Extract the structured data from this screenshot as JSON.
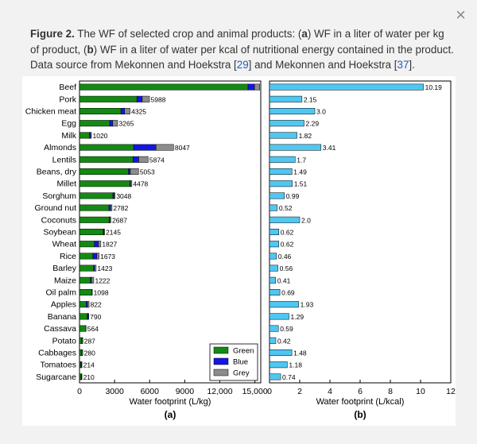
{
  "dialog": {
    "close_label": "×"
  },
  "caption": {
    "fig_label": "Figure 2.",
    "part1": " The WF of selected crop and animal products: (",
    "a_letter": "a",
    "part2": ") WF in a liter of water per kg of product, (",
    "b_letter": "b",
    "part3": ") WF in a liter of water per kcal of nutritional energy contained in the product. Data source from Mekonnen and Hoekstra [",
    "ref1": "29",
    "part4": "] and Mekonnen and Hoekstra [",
    "ref2": "37",
    "part5": "]."
  },
  "colors": {
    "green": "#138a13",
    "blue": "#1515e6",
    "grey": "#8c8c8c",
    "cyan": "#4fc7f3",
    "link": "#1f5fb8"
  },
  "chart_data": [
    {
      "type": "bar",
      "orientation": "horizontal",
      "stacked": true,
      "panel": "(a)",
      "xlabel": "Water footprint (L/kg)",
      "xlim": [
        0,
        15500
      ],
      "xticks": [
        0,
        3000,
        6000,
        9000,
        12000,
        15000
      ],
      "xtick_labels": [
        "0",
        "3000",
        "6000",
        "9000",
        "12,000",
        "15,000"
      ],
      "categories": [
        "Beef",
        "Pork",
        "Chicken meat",
        "Egg",
        "Milk",
        "Almonds",
        "Lentils",
        "Beans, dry",
        "Millet",
        "Sorghum",
        "Ground nut",
        "Coconuts",
        "Soybean",
        "Wheat",
        "Rice",
        "Barley",
        "Maize",
        "Oil palm",
        "Apples",
        "Banana",
        "Cassava",
        "Potato",
        "Cabbages",
        "Tomatoes",
        "Sugarcane"
      ],
      "series": [
        {
          "name": "Green",
          "color": "#138a13",
          "values": [
            14414,
            4907,
            3545,
            2592,
            863,
            4632,
            4574,
            4187,
            4306,
            2857,
            2521,
            2545,
            2037,
            1277,
            1146,
            1213,
            947,
            1057,
            561,
            660,
            550,
            191,
            181,
            108,
            139
          ]
        },
        {
          "name": "Blue",
          "color": "#1515e6",
          "values": [
            550,
            459,
            313,
            244,
            86,
            1908,
            489,
            158,
            57,
            103,
            150,
            49,
            70,
            342,
            341,
            79,
            81,
            0,
            133,
            97,
            0,
            33,
            26,
            63,
            57
          ]
        },
        {
          "name": "Grey",
          "color": "#8c8c8c",
          "values": [
            451,
            622,
            467,
            429,
            72,
            1507,
            811,
            708,
            115,
            87,
            111,
            93,
            37,
            208,
            187,
            131,
            194,
            41,
            127,
            33,
            14,
            63,
            73,
            43,
            14
          ]
        }
      ],
      "totals": [
        15415,
        5988,
        4325,
        3265,
        1020,
        8047,
        5874,
        5053,
        4478,
        3048,
        2782,
        2687,
        2145,
        1827,
        1673,
        1423,
        1222,
        1098,
        822,
        790,
        564,
        287,
        280,
        214,
        210
      ],
      "total_labels": [
        "",
        "5988",
        "4325",
        "3265",
        "1020",
        "8047",
        "5874",
        "5053",
        "4478",
        "3048",
        "2782",
        "2687",
        "2145",
        "1827",
        "1673",
        "1423",
        "1222",
        "1098",
        "822",
        "790",
        "564",
        "287",
        "280",
        "214",
        "210"
      ],
      "legend": {
        "position": "bottom-right",
        "entries": [
          "Green",
          "Blue",
          "Grey"
        ]
      }
    },
    {
      "type": "bar",
      "orientation": "horizontal",
      "panel": "(b)",
      "xlabel": "Water footprint (L/kcal)",
      "xlim": [
        0,
        12
      ],
      "xticks": [
        0,
        2,
        4,
        6,
        8,
        10,
        12
      ],
      "xtick_labels": [
        "0",
        "2",
        "4",
        "6",
        "8",
        "10",
        "12"
      ],
      "categories": [
        "Beef",
        "Pork",
        "Chicken meat",
        "Egg",
        "Milk",
        "Almonds",
        "Lentils",
        "Beans, dry",
        "Millet",
        "Sorghum",
        "Ground nut",
        "Coconuts",
        "Soybean",
        "Wheat",
        "Rice",
        "Barley",
        "Maize",
        "Oil palm",
        "Apples",
        "Banana",
        "Cassava",
        "Potato",
        "Cabbages",
        "Tomatoes",
        "Sugarcane"
      ],
      "color": "#4fc7f3",
      "values": [
        10.19,
        2.15,
        3.0,
        2.29,
        1.82,
        3.41,
        1.7,
        1.49,
        1.51,
        0.99,
        0.52,
        2.0,
        0.62,
        0.62,
        0.46,
        0.56,
        0.41,
        0.69,
        1.93,
        1.29,
        0.59,
        0.42,
        1.48,
        1.18,
        0.74
      ],
      "value_labels": [
        "10.19",
        "2.15",
        "3.0",
        "2.29",
        "1.82",
        "3.41",
        "1.7",
        "1.49",
        "1.51",
        "0.99",
        "0.52",
        "2.0",
        "0.62",
        "0.62",
        "0.46",
        "0.56",
        "0.41",
        "0.69",
        "1.93",
        "1.29",
        "0.59",
        "0.42",
        "1.48",
        "1.18",
        "0.74"
      ]
    }
  ]
}
